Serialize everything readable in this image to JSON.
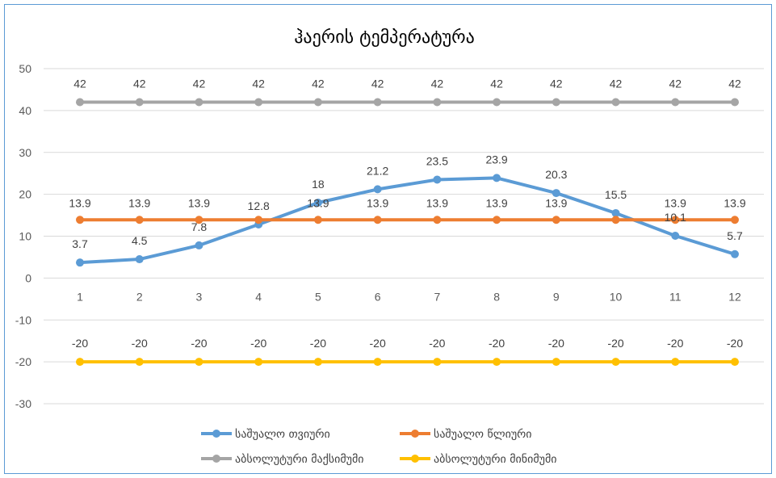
{
  "chart_data": {
    "type": "line",
    "title": "ჰაერის ტემპერატურა",
    "categories": [
      "1",
      "2",
      "3",
      "4",
      "5",
      "6",
      "7",
      "8",
      "9",
      "10",
      "11",
      "12"
    ],
    "ylim": [
      -30,
      50
    ],
    "y_ticks": [
      "50",
      "40",
      "30",
      "20",
      "10",
      "0",
      "-10",
      "-20",
      "-30"
    ],
    "grid": true,
    "legend_position": "bottom",
    "series": [
      {
        "name": "საშუალო თვიური",
        "color": "#5b9bd5",
        "values": [
          3.7,
          4.5,
          7.8,
          12.8,
          18,
          21.2,
          23.5,
          23.9,
          20.3,
          15.5,
          10.1,
          5.7
        ],
        "labels": [
          "3.7",
          "4.5",
          "7.8",
          "12.8",
          "18",
          "21.2",
          "23.5",
          "23.9",
          "20.3",
          "15.5",
          "10.1",
          "5.7"
        ]
      },
      {
        "name": "საშუალო წლიური",
        "color": "#ed7d31",
        "values": [
          13.9,
          13.9,
          13.9,
          13.9,
          13.9,
          13.9,
          13.9,
          13.9,
          13.9,
          13.9,
          13.9,
          13.9
        ],
        "labels": [
          "13.9",
          "13.9",
          "13.9",
          "",
          "13.9",
          "13.9",
          "13.9",
          "13.9",
          "13.9",
          "",
          "13.9",
          "13.9"
        ]
      },
      {
        "name": "აბსოლუტური მაქსიმუმი",
        "color": "#a5a5a5",
        "values": [
          42,
          42,
          42,
          42,
          42,
          42,
          42,
          42,
          42,
          42,
          42,
          42
        ],
        "labels": [
          "42",
          "42",
          "42",
          "42",
          "42",
          "42",
          "42",
          "42",
          "42",
          "42",
          "42",
          "42"
        ]
      },
      {
        "name": "აბსოლუტური მინიმუმი",
        "color": "#ffc000",
        "values": [
          -20,
          -20,
          -20,
          -20,
          -20,
          -20,
          -20,
          -20,
          -20,
          -20,
          -20,
          -20
        ],
        "labels": [
          "-20",
          "-20",
          "-20",
          "-20",
          "-20",
          "-20",
          "-20",
          "-20",
          "-20",
          "-20",
          "-20",
          "-20"
        ]
      }
    ]
  }
}
